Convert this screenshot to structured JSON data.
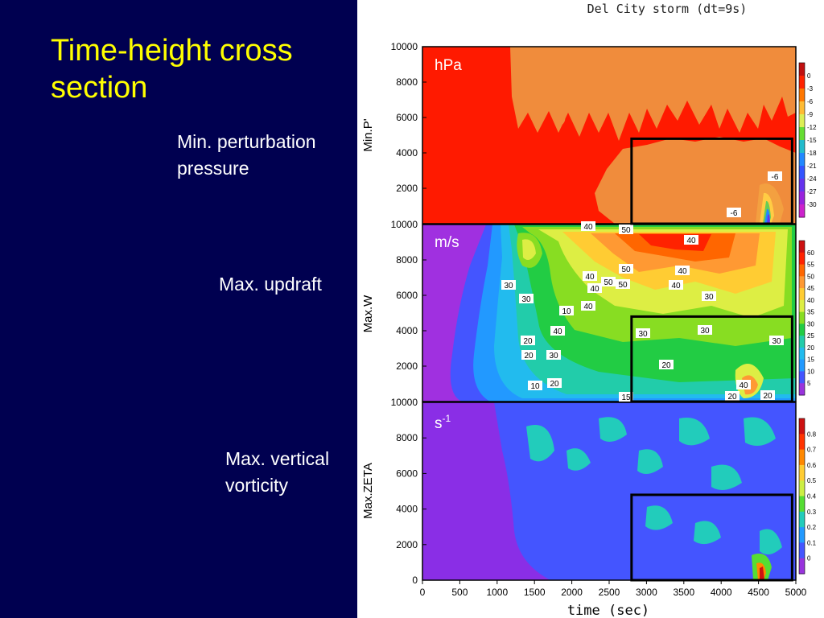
{
  "slide": {
    "title_line1": "Time-height cross",
    "title_line2": "section",
    "labels": [
      {
        "line1": "Min. perturbation",
        "line2": "pressure"
      },
      {
        "line1": "Max. updraft",
        "line2": ""
      },
      {
        "line1": "Max. vertical",
        "line2": "vorticity"
      }
    ]
  },
  "chart_data": {
    "type": "heatmap",
    "title": "Del City storm (dt=9s)",
    "xlabel": "time  (sec)",
    "xlim": [
      0,
      5000
    ],
    "x_ticks": [
      "0",
      "500",
      "1000",
      "1500",
      "2000",
      "2500",
      "3000",
      "3500",
      "4000",
      "4500",
      "5000"
    ],
    "ylim": [
      0,
      10000
    ],
    "y_ticks": [
      "0",
      "2000",
      "4000",
      "6000",
      "8000",
      "10000"
    ],
    "highlight_box": {
      "time_range": [
        2800,
        4950
      ],
      "height_range": [
        0,
        4800
      ]
    },
    "panels": [
      {
        "ylabel": "Min.P'",
        "unit": "hPa",
        "colorbar_levels": [
          "0",
          "-3",
          "-6",
          "-9",
          "-12",
          "-15",
          "-18",
          "-21",
          "-24",
          "-27",
          "-30"
        ],
        "colorbar_colors": [
          "#c01010",
          "#ff2200",
          "#ff7700",
          "#ffbb33",
          "#ddee55",
          "#66dd33",
          "#22bbcc",
          "#2288ff",
          "#3355ff",
          "#6633ee",
          "#9922dd",
          "#cc22cc"
        ],
        "background_color": "#ff1a00",
        "contour_labels": [
          "-6",
          "-6"
        ]
      },
      {
        "ylabel": "Max.W",
        "unit": "m/s",
        "colorbar_levels": [
          "60",
          "55",
          "50",
          "45",
          "40",
          "35",
          "30",
          "25",
          "20",
          "15",
          "10",
          "5"
        ],
        "colorbar_colors": [
          "#cc1111",
          "#ff2200",
          "#ff6600",
          "#ff9933",
          "#ffcc33",
          "#ddee44",
          "#88dd22",
          "#22cc44",
          "#22ccaa",
          "#22bbee",
          "#2299ff",
          "#4455ff",
          "#9933dd"
        ],
        "background_color": "#a030e0",
        "contour_labels": [
          "40",
          "40",
          "50",
          "30",
          "30",
          "20",
          "30",
          "40",
          "50",
          "40",
          "50",
          "40",
          "50",
          "40",
          "40",
          "30",
          "20",
          "10",
          "40",
          "30",
          "30",
          "30",
          "20",
          "20",
          "10",
          "40",
          "15",
          "20",
          "20"
        ]
      },
      {
        "ylabel": "Max.ZETA",
        "unit": "s",
        "unit_superscript": "-1",
        "colorbar_levels": [
          "0.8",
          "0.7",
          "0.6",
          "0.5",
          "0.4",
          "0.3",
          "0.2",
          "0.1",
          "0"
        ],
        "colorbar_colors": [
          "#cc1111",
          "#ff3300",
          "#ff8800",
          "#ffcc33",
          "#ccee44",
          "#55dd33",
          "#22ccbb",
          "#2299ff",
          "#4455ff",
          "#9933dd"
        ],
        "background_color": "#8a2ee6",
        "contour_labels": []
      }
    ]
  }
}
